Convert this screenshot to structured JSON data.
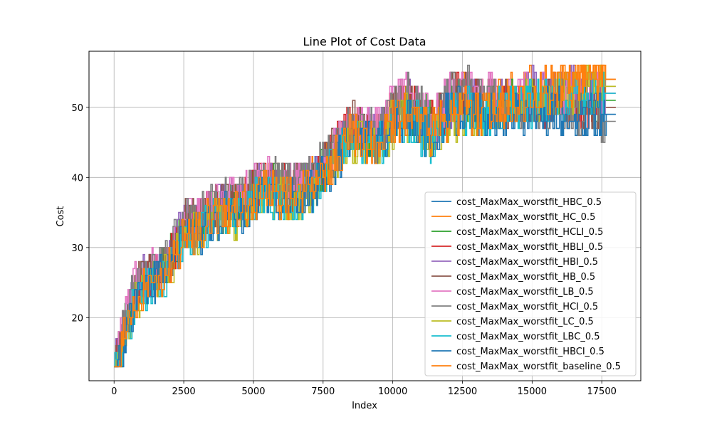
{
  "chart_data": {
    "type": "line",
    "title": "Line Plot of Cost Data",
    "xlabel": "Index",
    "ylabel": "Cost",
    "xlim": [
      -900,
      18900
    ],
    "ylim": [
      11,
      58
    ],
    "xticks": [
      0,
      2500,
      5000,
      7500,
      10000,
      12500,
      15000,
      17500
    ],
    "yticks": [
      20,
      30,
      40,
      50
    ],
    "grid": true,
    "legend_position": "lower-right",
    "series": [
      {
        "name": "cost_MaxMax_worstfit_HBC_0.5",
        "color": "#1f77b4",
        "final": 49
      },
      {
        "name": "cost_MaxMax_worstfit_HC_0.5",
        "color": "#ff7f0e",
        "final": 54
      },
      {
        "name": "cost_MaxMax_worstfit_HCLI_0.5",
        "color": "#2ca02c",
        "final": 51
      },
      {
        "name": "cost_MaxMax_worstfit_HBLI_0.5",
        "color": "#d62728",
        "final": 50
      },
      {
        "name": "cost_MaxMax_worstfit_HBI_0.5",
        "color": "#9467bd",
        "final": 53
      },
      {
        "name": "cost_MaxMax_worstfit_HB_0.5",
        "color": "#8c564b",
        "final": 50
      },
      {
        "name": "cost_MaxMax_worstfit_LB_0.5",
        "color": "#e377c2",
        "final": 52
      },
      {
        "name": "cost_MaxMax_worstfit_HCI_0.5",
        "color": "#7f7f7f",
        "final": 48
      },
      {
        "name": "cost_MaxMax_worstfit_LC_0.5",
        "color": "#bcbd22",
        "final": 53
      },
      {
        "name": "cost_MaxMax_worstfit_LBC_0.5",
        "color": "#17becf",
        "final": 52
      },
      {
        "name": "cost_MaxMax_worstfit_HBCI_0.5",
        "color": "#1f77b4",
        "final": 49
      },
      {
        "name": "cost_MaxMax_worstfit_baseline_0.5",
        "color": "#ff7f0e",
        "final": 54
      }
    ],
    "trend": {
      "x": [
        0,
        200,
        400,
        700,
        1000,
        1500,
        2000,
        2500,
        3000,
        3500,
        4000,
        4500,
        5000,
        5500,
        6000,
        6500,
        7000,
        7500,
        8000,
        8500,
        9000,
        9500,
        10000,
        10500,
        11000,
        11500,
        12000,
        12500,
        13000,
        14000,
        15000,
        16000,
        17000,
        18000
      ],
      "y": [
        13,
        15,
        19,
        23,
        25,
        26,
        28,
        33,
        33,
        35,
        36,
        36,
        38,
        39,
        38,
        38,
        39,
        41,
        44,
        47,
        46,
        46,
        49,
        50,
        48,
        47,
        50,
        51,
        50,
        50,
        51,
        51,
        51,
        51
      ]
    },
    "peak_x": 12300,
    "settle_x": 17600,
    "x_end": 18000
  }
}
